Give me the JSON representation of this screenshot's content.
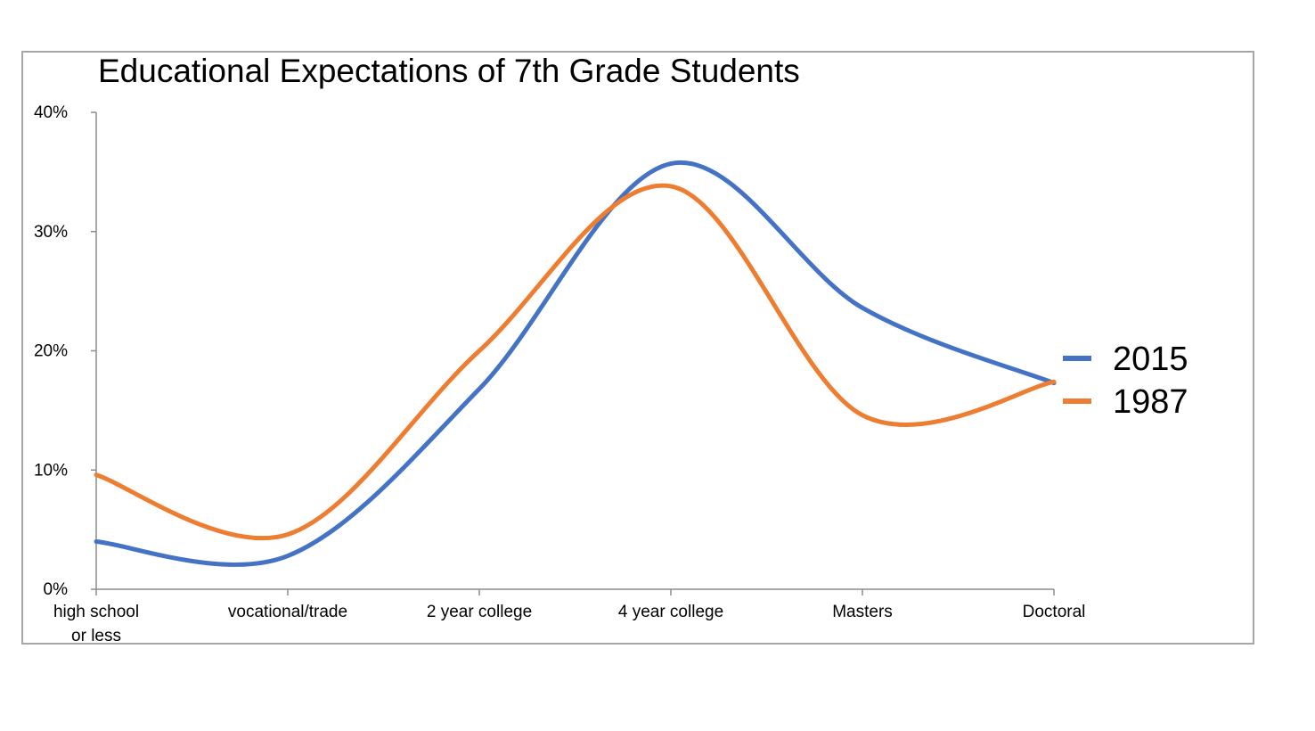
{
  "chart_data": {
    "type": "line",
    "title": "Educational Expectations of 7th Grade Students",
    "xlabel": "",
    "ylabel": "",
    "ylim": [
      0,
      40
    ],
    "yticks": [
      "0%",
      "10%",
      "20%",
      "30%",
      "40%"
    ],
    "categories": [
      [
        "high school",
        "or less"
      ],
      [
        "vocational/trade"
      ],
      [
        "2 year college"
      ],
      [
        "4 year college"
      ],
      [
        "Masters"
      ],
      [
        "Doctoral"
      ]
    ],
    "series": [
      {
        "name": "2015",
        "color": "#4472c4",
        "values": [
          4.0,
          2.8,
          16.8,
          35.7,
          23.6,
          17.3
        ]
      },
      {
        "name": "1987",
        "color": "#ed7d31",
        "values": [
          9.6,
          4.6,
          20.0,
          33.8,
          14.6,
          17.4
        ]
      }
    ],
    "legend_position": "right",
    "grid": false,
    "smooth": true
  }
}
